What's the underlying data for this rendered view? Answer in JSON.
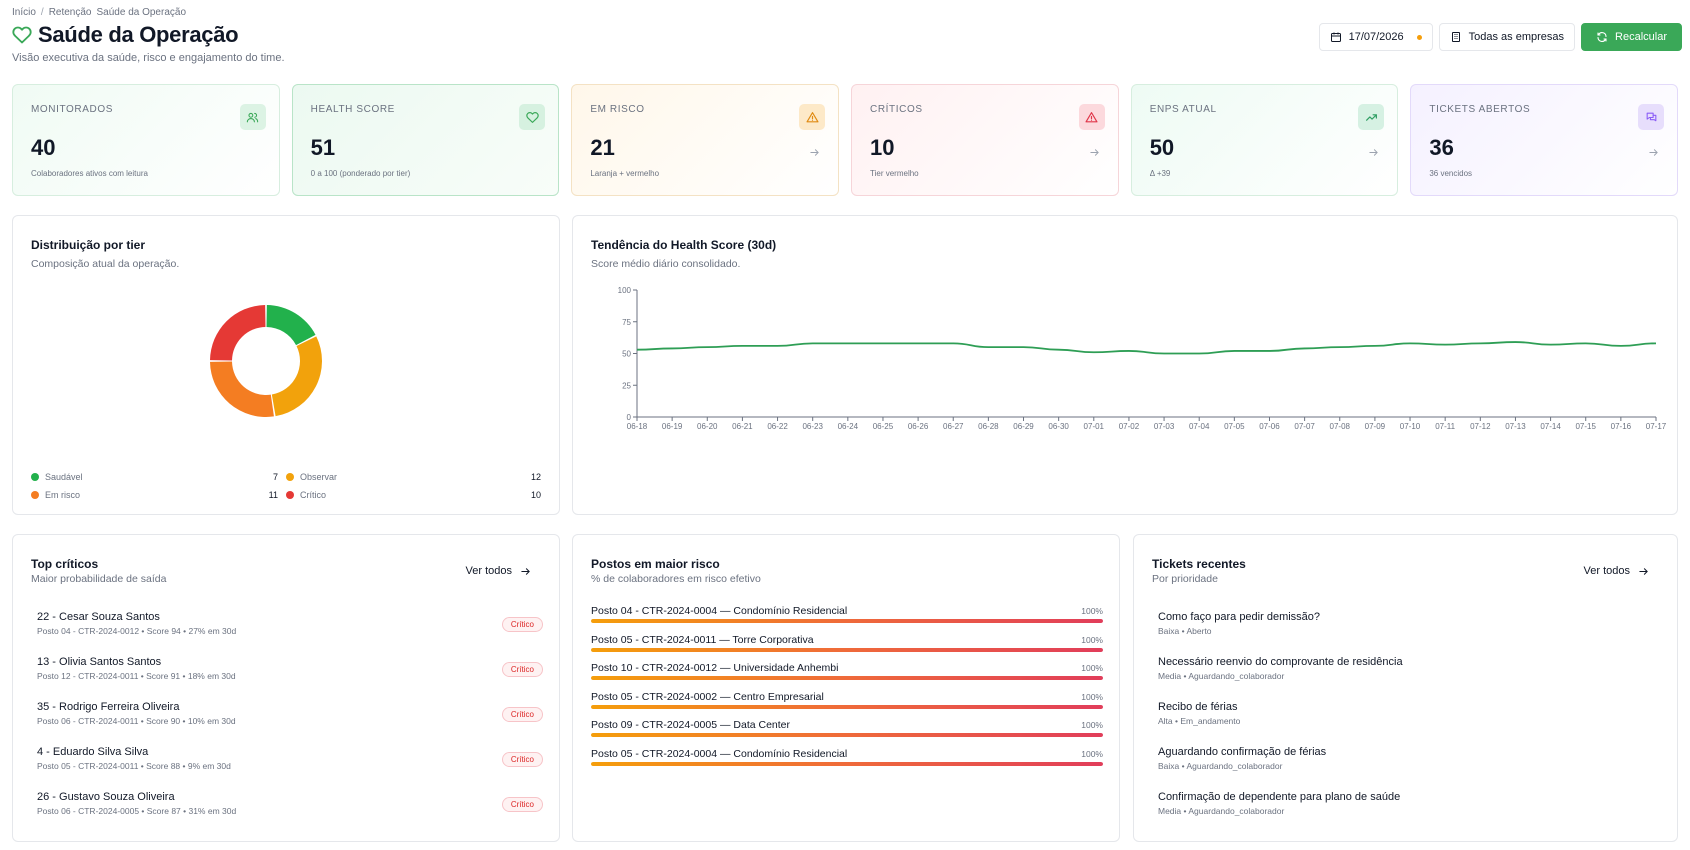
{
  "breadcrumb": [
    "Início",
    "Retenção",
    "Saúde da Operação"
  ],
  "header": {
    "title": "Saúde da Operação",
    "subtitle": "Visão executiva da saúde, risco e engajamento do time.",
    "date": "17/07/2026",
    "company_filter": "Todas as empresas",
    "recalc_label": "Recalcular"
  },
  "kpis": [
    {
      "label": "Monitorados",
      "value": "40",
      "sub": "Colaboradores ativos com leitura",
      "icon": "users-icon",
      "color": "#3aa858"
    },
    {
      "label": "Health Score",
      "value": "51",
      "sub": "0 a 100 (ponderado por tier)",
      "icon": "heart-icon",
      "color": "#3aa858"
    },
    {
      "label": "Em risco",
      "value": "21",
      "sub": "Laranja + vermelho",
      "icon": "warning-icon",
      "color": "#e08a12"
    },
    {
      "label": "Críticos",
      "value": "10",
      "sub": "Tier vermelho",
      "icon": "alert-icon",
      "color": "#e0364a"
    },
    {
      "label": "eNPS atual",
      "value": "50",
      "sub": "Δ +39",
      "icon": "trending-up-icon",
      "color": "#2e9e62"
    },
    {
      "label": "Tickets abertos",
      "value": "36",
      "sub": "36 vencidos",
      "icon": "chat-icon",
      "color": "#8b5cf6"
    }
  ],
  "distribution": {
    "title": "Distribuição por tier",
    "subtitle": "Composição atual da operação.",
    "chart_data": {
      "type": "pie",
      "categories": [
        "Saudável",
        "Observar",
        "Em risco",
        "Crítico"
      ],
      "values": [
        7,
        12,
        11,
        10
      ],
      "colors": [
        "#22b14c",
        "#f2a20c",
        "#f47d22",
        "#e53935"
      ],
      "legend": "bottom"
    }
  },
  "trend": {
    "title": "Tendência do Health Score (30d)",
    "subtitle": "Score médio diário consolidado.",
    "chart_data": {
      "type": "line",
      "x": [
        "06-18",
        "06-19",
        "06-20",
        "06-21",
        "06-22",
        "06-23",
        "06-24",
        "06-25",
        "06-26",
        "06-27",
        "06-28",
        "06-29",
        "06-30",
        "07-01",
        "07-02",
        "07-03",
        "07-04",
        "07-05",
        "07-06",
        "07-07",
        "07-08",
        "07-09",
        "07-10",
        "07-11",
        "07-12",
        "07-13",
        "07-14",
        "07-15",
        "07-16",
        "07-17"
      ],
      "series": [
        {
          "values": [
            53,
            54,
            55,
            56,
            56,
            58,
            58,
            58,
            58,
            58,
            55,
            55,
            53,
            51,
            52,
            50,
            50,
            52,
            52,
            54,
            55,
            56,
            58,
            57,
            58,
            59,
            57,
            58,
            56,
            58
          ],
          "color": "#2e9e55"
        }
      ],
      "ylim": [
        0,
        100
      ],
      "yticks": [
        0,
        25,
        50,
        75,
        100
      ],
      "grid": false
    }
  },
  "top_criticos": {
    "title": "Top críticos",
    "subtitle": "Maior probabilidade de saída",
    "view_all": "Ver todos",
    "items": [
      {
        "name": "22 - Cesar Souza Santos",
        "meta": "Posto 04 - CTR-2024-0012 • Score 94 • 27% em 30d",
        "badge": "Crítico"
      },
      {
        "name": "13 - Olivia Santos Santos",
        "meta": "Posto 12 - CTR-2024-0011 • Score 91 • 18% em 30d",
        "badge": "Crítico"
      },
      {
        "name": "35 - Rodrigo Ferreira Oliveira",
        "meta": "Posto 06 - CTR-2024-0011 • Score 90 • 10% em 30d",
        "badge": "Crítico"
      },
      {
        "name": "4 - Eduardo Silva Silva",
        "meta": "Posto 05 - CTR-2024-0011 • Score 88 • 9% em 30d",
        "badge": "Crítico"
      },
      {
        "name": "26 - Gustavo Souza Oliveira",
        "meta": "Posto 06 - CTR-2024-0005 • Score 87 • 31% em 30d",
        "badge": "Crítico"
      }
    ]
  },
  "postos": {
    "title": "Postos em maior risco",
    "subtitle": "% de colaboradores em risco efetivo",
    "items": [
      {
        "name": "Posto 04 - CTR-2024-0004 — Condomínio Residencial",
        "pct_label": "100%",
        "pct": 100
      },
      {
        "name": "Posto 05 - CTR-2024-0011 — Torre Corporativa",
        "pct_label": "100%",
        "pct": 100
      },
      {
        "name": "Posto 10 - CTR-2024-0012 — Universidade Anhembi",
        "pct_label": "100%",
        "pct": 100
      },
      {
        "name": "Posto 05 - CTR-2024-0002 — Centro Empresarial",
        "pct_label": "100%",
        "pct": 100
      },
      {
        "name": "Posto 09 - CTR-2024-0005 — Data Center",
        "pct_label": "100%",
        "pct": 100
      },
      {
        "name": "Posto 05 - CTR-2024-0004 — Condomínio Residencial",
        "pct_label": "100%",
        "pct": 100
      }
    ]
  },
  "tickets": {
    "title": "Tickets recentes",
    "subtitle": "Por prioridade",
    "view_all": "Ver todos",
    "items": [
      {
        "name": "Como faço para pedir demissão?",
        "meta": "Baixa • Aberto"
      },
      {
        "name": "Necessário reenvio do comprovante de residência",
        "meta": "Media • Aguardando_colaborador"
      },
      {
        "name": "Recibo de férias",
        "meta": "Alta • Em_andamento"
      },
      {
        "name": "Aguardando confirmação de férias",
        "meta": "Baixa • Aguardando_colaborador"
      },
      {
        "name": "Confirmação de dependente para plano de saúde",
        "meta": "Media • Aguardando_colaborador"
      }
    ]
  }
}
